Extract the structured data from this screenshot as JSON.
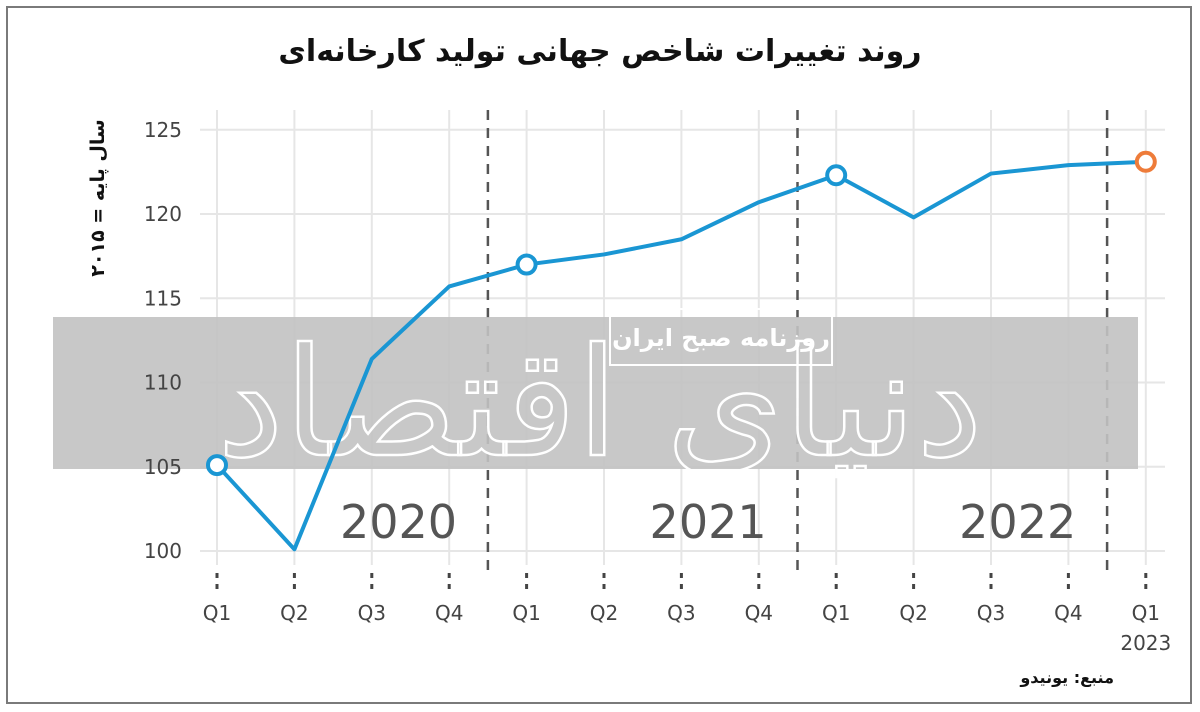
{
  "title": "روند تغییرات شاخص جهانی تولید کارخانه‌ای",
  "source": "منبع: یونیدو",
  "watermark": {
    "logo_text": "دنیای اقتصاد",
    "stamp_text": "روزنامه صبح ایران"
  },
  "colors": {
    "line": "#1a96d3",
    "last_point": "#ee7c3a",
    "grid": "#e6e6e6",
    "divider": "#555555",
    "band": "#c2c2c2"
  },
  "chart_data": {
    "type": "line",
    "title": "روند تغییرات شاخص جهانی تولید کارخانه‌ای",
    "ylabel": "سال پایه = ۲۰۱۵",
    "xlabel": "",
    "ylim": [
      99,
      126
    ],
    "yticks": [
      100,
      105,
      110,
      115,
      120,
      125
    ],
    "categories": [
      "Q1",
      "Q2",
      "Q3",
      "Q4",
      "Q1",
      "Q2",
      "Q3",
      "Q4",
      "Q1",
      "Q2",
      "Q3",
      "Q4",
      "Q1"
    ],
    "year_labels": [
      "2020",
      "2021",
      "2022"
    ],
    "last_year_label": "2023",
    "values": [
      105.1,
      100.1,
      111.4,
      115.7,
      117.0,
      117.6,
      118.5,
      120.7,
      122.3,
      119.8,
      122.4,
      122.9,
      123.1
    ],
    "marked_points": [
      0,
      4,
      8
    ],
    "highlighted_point": 12,
    "grid": true,
    "legend": "none"
  }
}
